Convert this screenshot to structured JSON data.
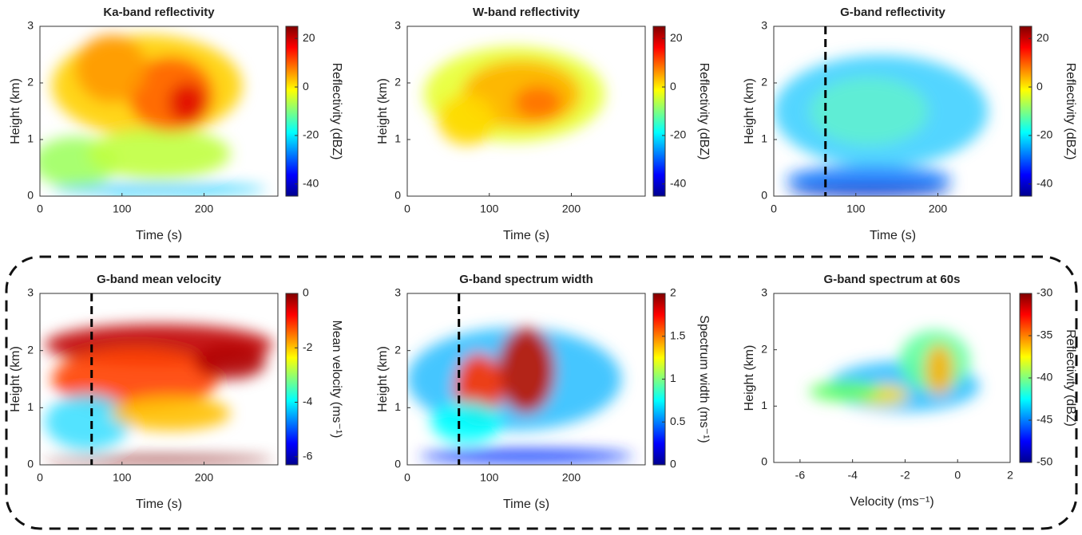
{
  "chart_data": [
    {
      "type": "heatmap",
      "title": "Ka-band reflectivity",
      "xlabel": "Time (s)",
      "ylabel": "Height (km)",
      "colorbar_label": "Reflectivity (dBZ)",
      "xlim": [
        0,
        290
      ],
      "xticks": [
        0,
        100,
        200
      ],
      "ylim": [
        0,
        3
      ],
      "yticks": [
        0,
        1,
        2,
        3
      ],
      "clim": [
        -45,
        25
      ],
      "cticks": [
        -40,
        -20,
        0,
        20
      ],
      "colormap": "jet"
    },
    {
      "type": "heatmap",
      "title": "W-band reflectivity",
      "xlabel": "Time (s)",
      "ylabel": "Height (km)",
      "colorbar_label": "Reflectivity (dBZ)",
      "xlim": [
        0,
        290
      ],
      "xticks": [
        0,
        100,
        200
      ],
      "ylim": [
        0,
        3
      ],
      "yticks": [
        0,
        1,
        2,
        3
      ],
      "clim": [
        -45,
        25
      ],
      "cticks": [
        -40,
        -20,
        0,
        20
      ],
      "colormap": "jet"
    },
    {
      "type": "heatmap",
      "title": "G-band reflectivity",
      "xlabel": "Time (s)",
      "ylabel": "Height (km)",
      "colorbar_label": "Reflectivity (dBZ)",
      "xlim": [
        0,
        290
      ],
      "xticks": [
        0,
        100,
        200
      ],
      "ylim": [
        0,
        3
      ],
      "yticks": [
        0,
        1,
        2,
        3
      ],
      "clim": [
        -45,
        25
      ],
      "cticks": [
        -40,
        -20,
        0,
        20
      ],
      "colormap": "jet",
      "vline": 63
    },
    {
      "type": "heatmap",
      "title": "G-band mean velocity",
      "xlabel": "Time (s)",
      "ylabel": "Height (km)",
      "colorbar_label": "Mean velocity (ms⁻¹)",
      "xlim": [
        0,
        290
      ],
      "xticks": [
        0,
        100,
        200
      ],
      "ylim": [
        0,
        3
      ],
      "yticks": [
        0,
        1,
        2,
        3
      ],
      "clim": [
        -6.3,
        0
      ],
      "cticks": [
        -6,
        -4,
        -2,
        0
      ],
      "colormap": "jet",
      "vline": 63
    },
    {
      "type": "heatmap",
      "title": "G-band spectrum width",
      "xlabel": "Time (s)",
      "ylabel": "Height (km)",
      "colorbar_label": "Spectrum width (ms⁻¹)",
      "xlim": [
        0,
        290
      ],
      "xticks": [
        0,
        100,
        200
      ],
      "ylim": [
        0,
        3
      ],
      "yticks": [
        0,
        1,
        2,
        3
      ],
      "clim": [
        0,
        2
      ],
      "cticks": [
        0,
        0.5,
        1,
        1.5,
        2
      ],
      "colormap": "jet",
      "vline": 63
    },
    {
      "type": "heatmap",
      "title": "G-band spectrum at 60s",
      "xlabel": "Velocity (ms⁻¹)",
      "ylabel": "Height (km)",
      "colorbar_label": "Reflectivity (dBZ)",
      "xlim": [
        -7,
        2
      ],
      "xticks": [
        -6,
        -4,
        -2,
        0,
        2
      ],
      "ylim": [
        0,
        3
      ],
      "yticks": [
        0,
        1,
        2,
        3
      ],
      "clim": [
        -50,
        -30
      ],
      "cticks": [
        -50,
        -45,
        -40,
        -35,
        -30
      ],
      "colormap": "jet"
    }
  ]
}
